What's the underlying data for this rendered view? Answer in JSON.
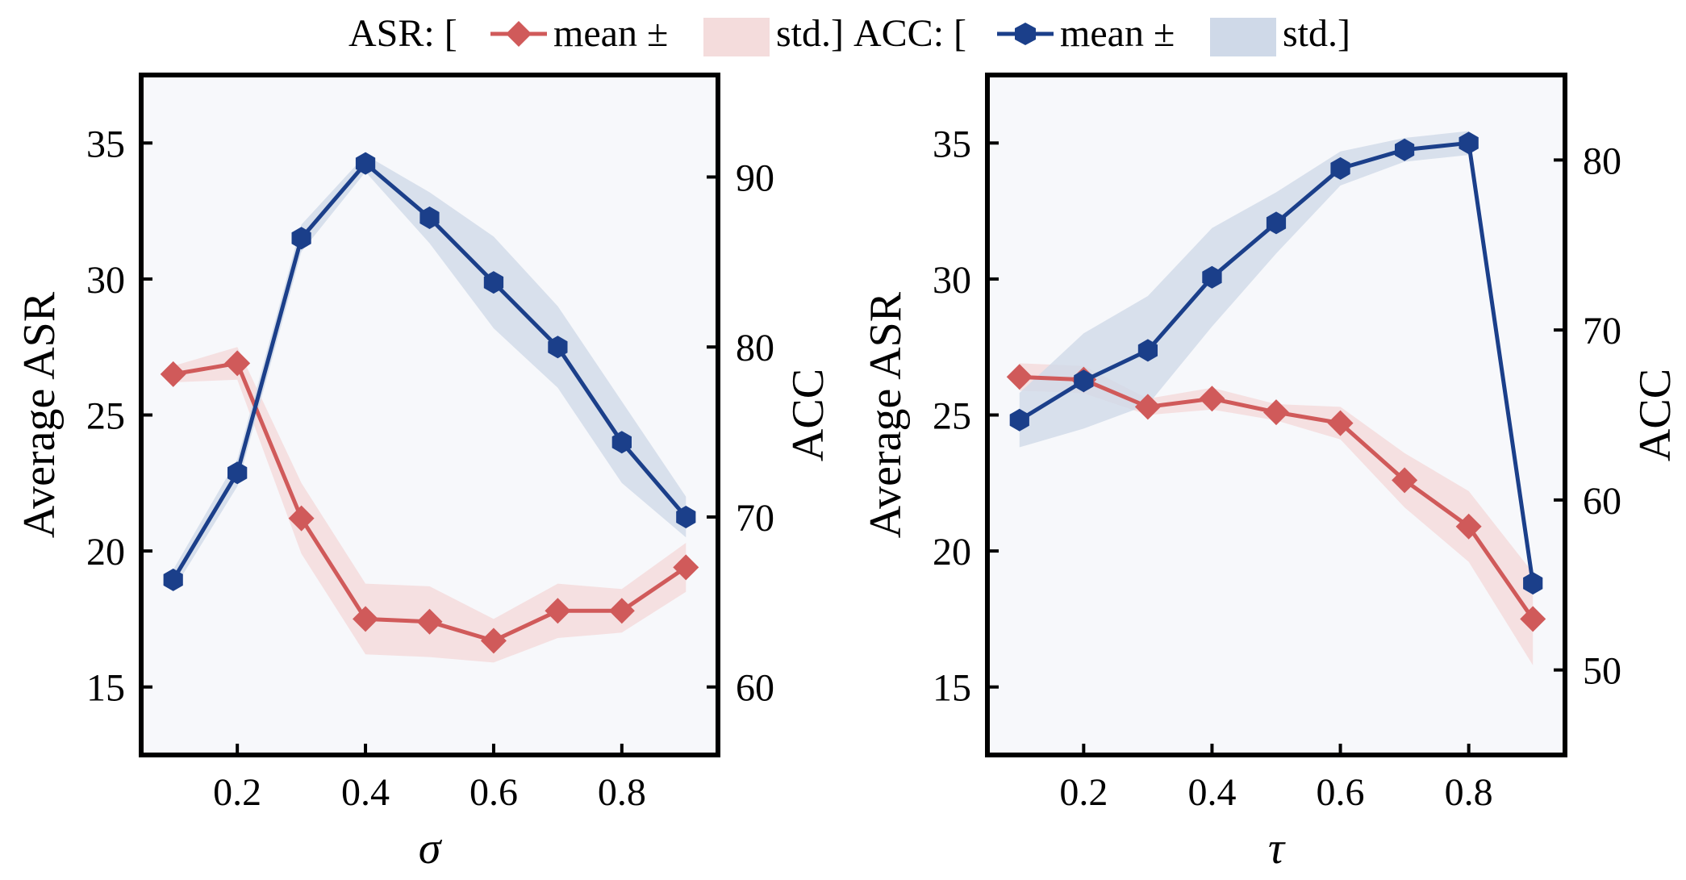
{
  "legend": {
    "asr_prefix": "ASR: [",
    "asr_mean": "mean ±",
    "asr_std": "std.]",
    "acc_prefix": "ACC: [",
    "acc_mean": "mean ±",
    "acc_std": "std.]"
  },
  "colors": {
    "asr": "#d05a5a",
    "asr_band": "#f4dcdc",
    "acc": "#1b3f8a",
    "acc_band": "#cfd9e8",
    "plot_bg": "#f7f8fb"
  },
  "chart_data": [
    {
      "type": "line",
      "xlabel": "σ",
      "ylabel_left": "Average ASR",
      "ylabel_right": "ACC",
      "xlim": [
        0.05,
        0.95
      ],
      "xticks": [
        0.2,
        0.4,
        0.6,
        0.8
      ],
      "xtick_labels": [
        "0.2",
        "0.4",
        "0.6",
        "0.8"
      ],
      "ylim_left": [
        12.5,
        37.5
      ],
      "yticks_left": [
        15,
        20,
        25,
        30,
        35
      ],
      "ylim_right": [
        56,
        96
      ],
      "yticks_right": [
        60,
        70,
        80,
        90
      ],
      "x": [
        0.1,
        0.2,
        0.3,
        0.4,
        0.5,
        0.6,
        0.7,
        0.8,
        0.9
      ],
      "series": [
        {
          "name": "ASR",
          "axis": "left",
          "values": [
            26.5,
            26.9,
            21.2,
            17.5,
            17.4,
            16.7,
            17.8,
            17.8,
            19.4
          ],
          "std": [
            0.3,
            0.6,
            1.3,
            1.3,
            1.3,
            0.8,
            1.0,
            0.8,
            0.9
          ]
        },
        {
          "name": "ACC",
          "axis": "right",
          "values": [
            66.3,
            72.6,
            86.4,
            90.8,
            87.6,
            83.8,
            80.0,
            74.4,
            70.0
          ],
          "std": [
            0.6,
            0.8,
            0.8,
            0.5,
            1.5,
            2.7,
            2.4,
            2.4,
            1.2
          ]
        }
      ]
    },
    {
      "type": "line",
      "xlabel": "τ",
      "ylabel_left": "Average ASR",
      "ylabel_right": "ACC",
      "xlim": [
        0.05,
        0.95
      ],
      "xticks": [
        0.2,
        0.4,
        0.6,
        0.8
      ],
      "xtick_labels": [
        "0.2",
        "0.4",
        "0.6",
        "0.8"
      ],
      "ylim_left": [
        12.5,
        37.5
      ],
      "yticks_left": [
        15,
        20,
        25,
        30,
        35
      ],
      "ylim_right": [
        45,
        85
      ],
      "yticks_right": [
        50,
        60,
        70,
        80
      ],
      "x": [
        0.1,
        0.2,
        0.3,
        0.4,
        0.5,
        0.6,
        0.7,
        0.8,
        0.9
      ],
      "series": [
        {
          "name": "ASR",
          "axis": "left",
          "values": [
            26.4,
            26.3,
            25.3,
            25.6,
            25.1,
            24.7,
            22.6,
            20.9,
            17.5
          ],
          "std": [
            0.5,
            0.5,
            0.3,
            0.4,
            0.3,
            0.6,
            1.0,
            1.3,
            1.7
          ]
        },
        {
          "name": "ACC",
          "axis": "right",
          "values": [
            64.7,
            67.0,
            68.8,
            73.1,
            76.3,
            79.5,
            80.6,
            81.0,
            55.1
          ],
          "std": [
            1.6,
            2.8,
            3.2,
            2.9,
            1.8,
            1.0,
            0.7,
            0.7,
            0.5
          ]
        }
      ]
    }
  ]
}
